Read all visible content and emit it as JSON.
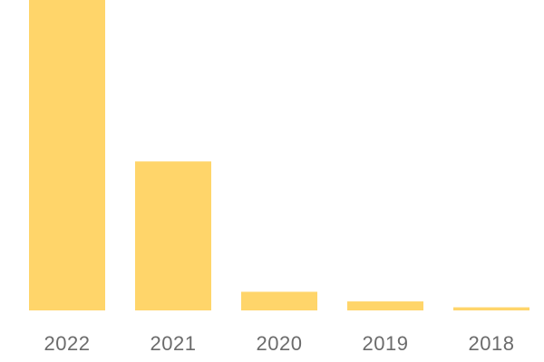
{
  "chart_data": {
    "type": "bar",
    "categories": [
      "2022",
      "2021",
      "2020",
      "2019",
      "2018"
    ],
    "values": [
      100,
      48,
      6,
      2.9,
      1
    ],
    "title": "",
    "xlabel": "",
    "ylabel": "",
    "ylim": [
      0,
      100
    ],
    "grid": false,
    "bar_color": "#FFD56A",
    "tick_color": "#6b6b6b"
  }
}
